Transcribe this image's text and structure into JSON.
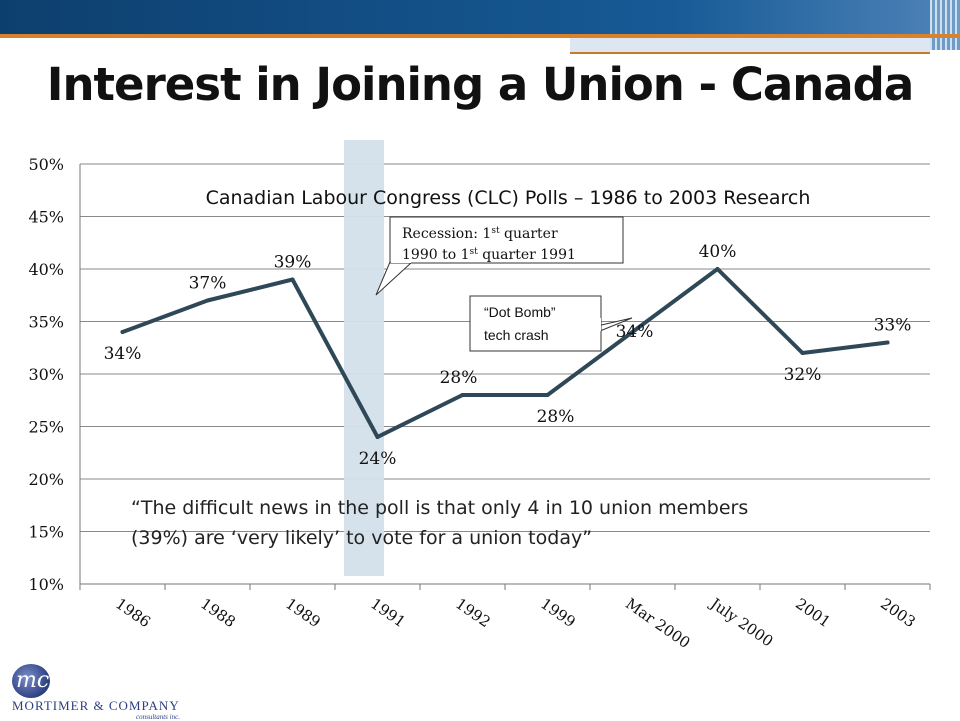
{
  "slide_title": "Interest in Joining a Union - Canada",
  "logo": {
    "name": "MORTIMER & COMPANY",
    "sub": "consultants inc.",
    "mark": "mc"
  },
  "colors": {
    "line": "#2f4858",
    "recession_band": "#d3e0ea",
    "grid": "#8a8a8a",
    "accent_orange": "#d9822b",
    "header_blue": "#175a96"
  },
  "chart_data": {
    "type": "line",
    "title": "Canadian Labour Congress (CLC) Polls – 1986 to 2003 Research",
    "categories": [
      "1986",
      "1988",
      "1989",
      "1991",
      "1992",
      "1999",
      "Mar 2000",
      "July 2000",
      "2001",
      "2003"
    ],
    "values": [
      34,
      37,
      39,
      24,
      28,
      28,
      34,
      40,
      32,
      33
    ],
    "data_labels": [
      "34%",
      "37%",
      "39%",
      "24%",
      "28%",
      "28%",
      "34%",
      "40%",
      "32%",
      "33%"
    ],
    "y_ticks": [
      "10%",
      "15%",
      "20%",
      "25%",
      "30%",
      "35%",
      "40%",
      "45%",
      "50%"
    ],
    "ylim": [
      10,
      50
    ],
    "grid": true,
    "recession_band_category": "1991",
    "annotations": {
      "recession": {
        "line1": "Recession: 1",
        "sup1": "st",
        "line1_end": " quarter",
        "line2": "1990 to 1",
        "sup2": "st",
        "line2_end": " quarter 1991"
      },
      "dotbomb": {
        "line1": "“Dot Bomb”",
        "line2": "tech crash"
      }
    },
    "quote": {
      "line1": "“The difficult news in the poll is that only 4 in 10 union members",
      "line2": "(39%) are ‘very likely’ to vote for a union today”"
    }
  }
}
